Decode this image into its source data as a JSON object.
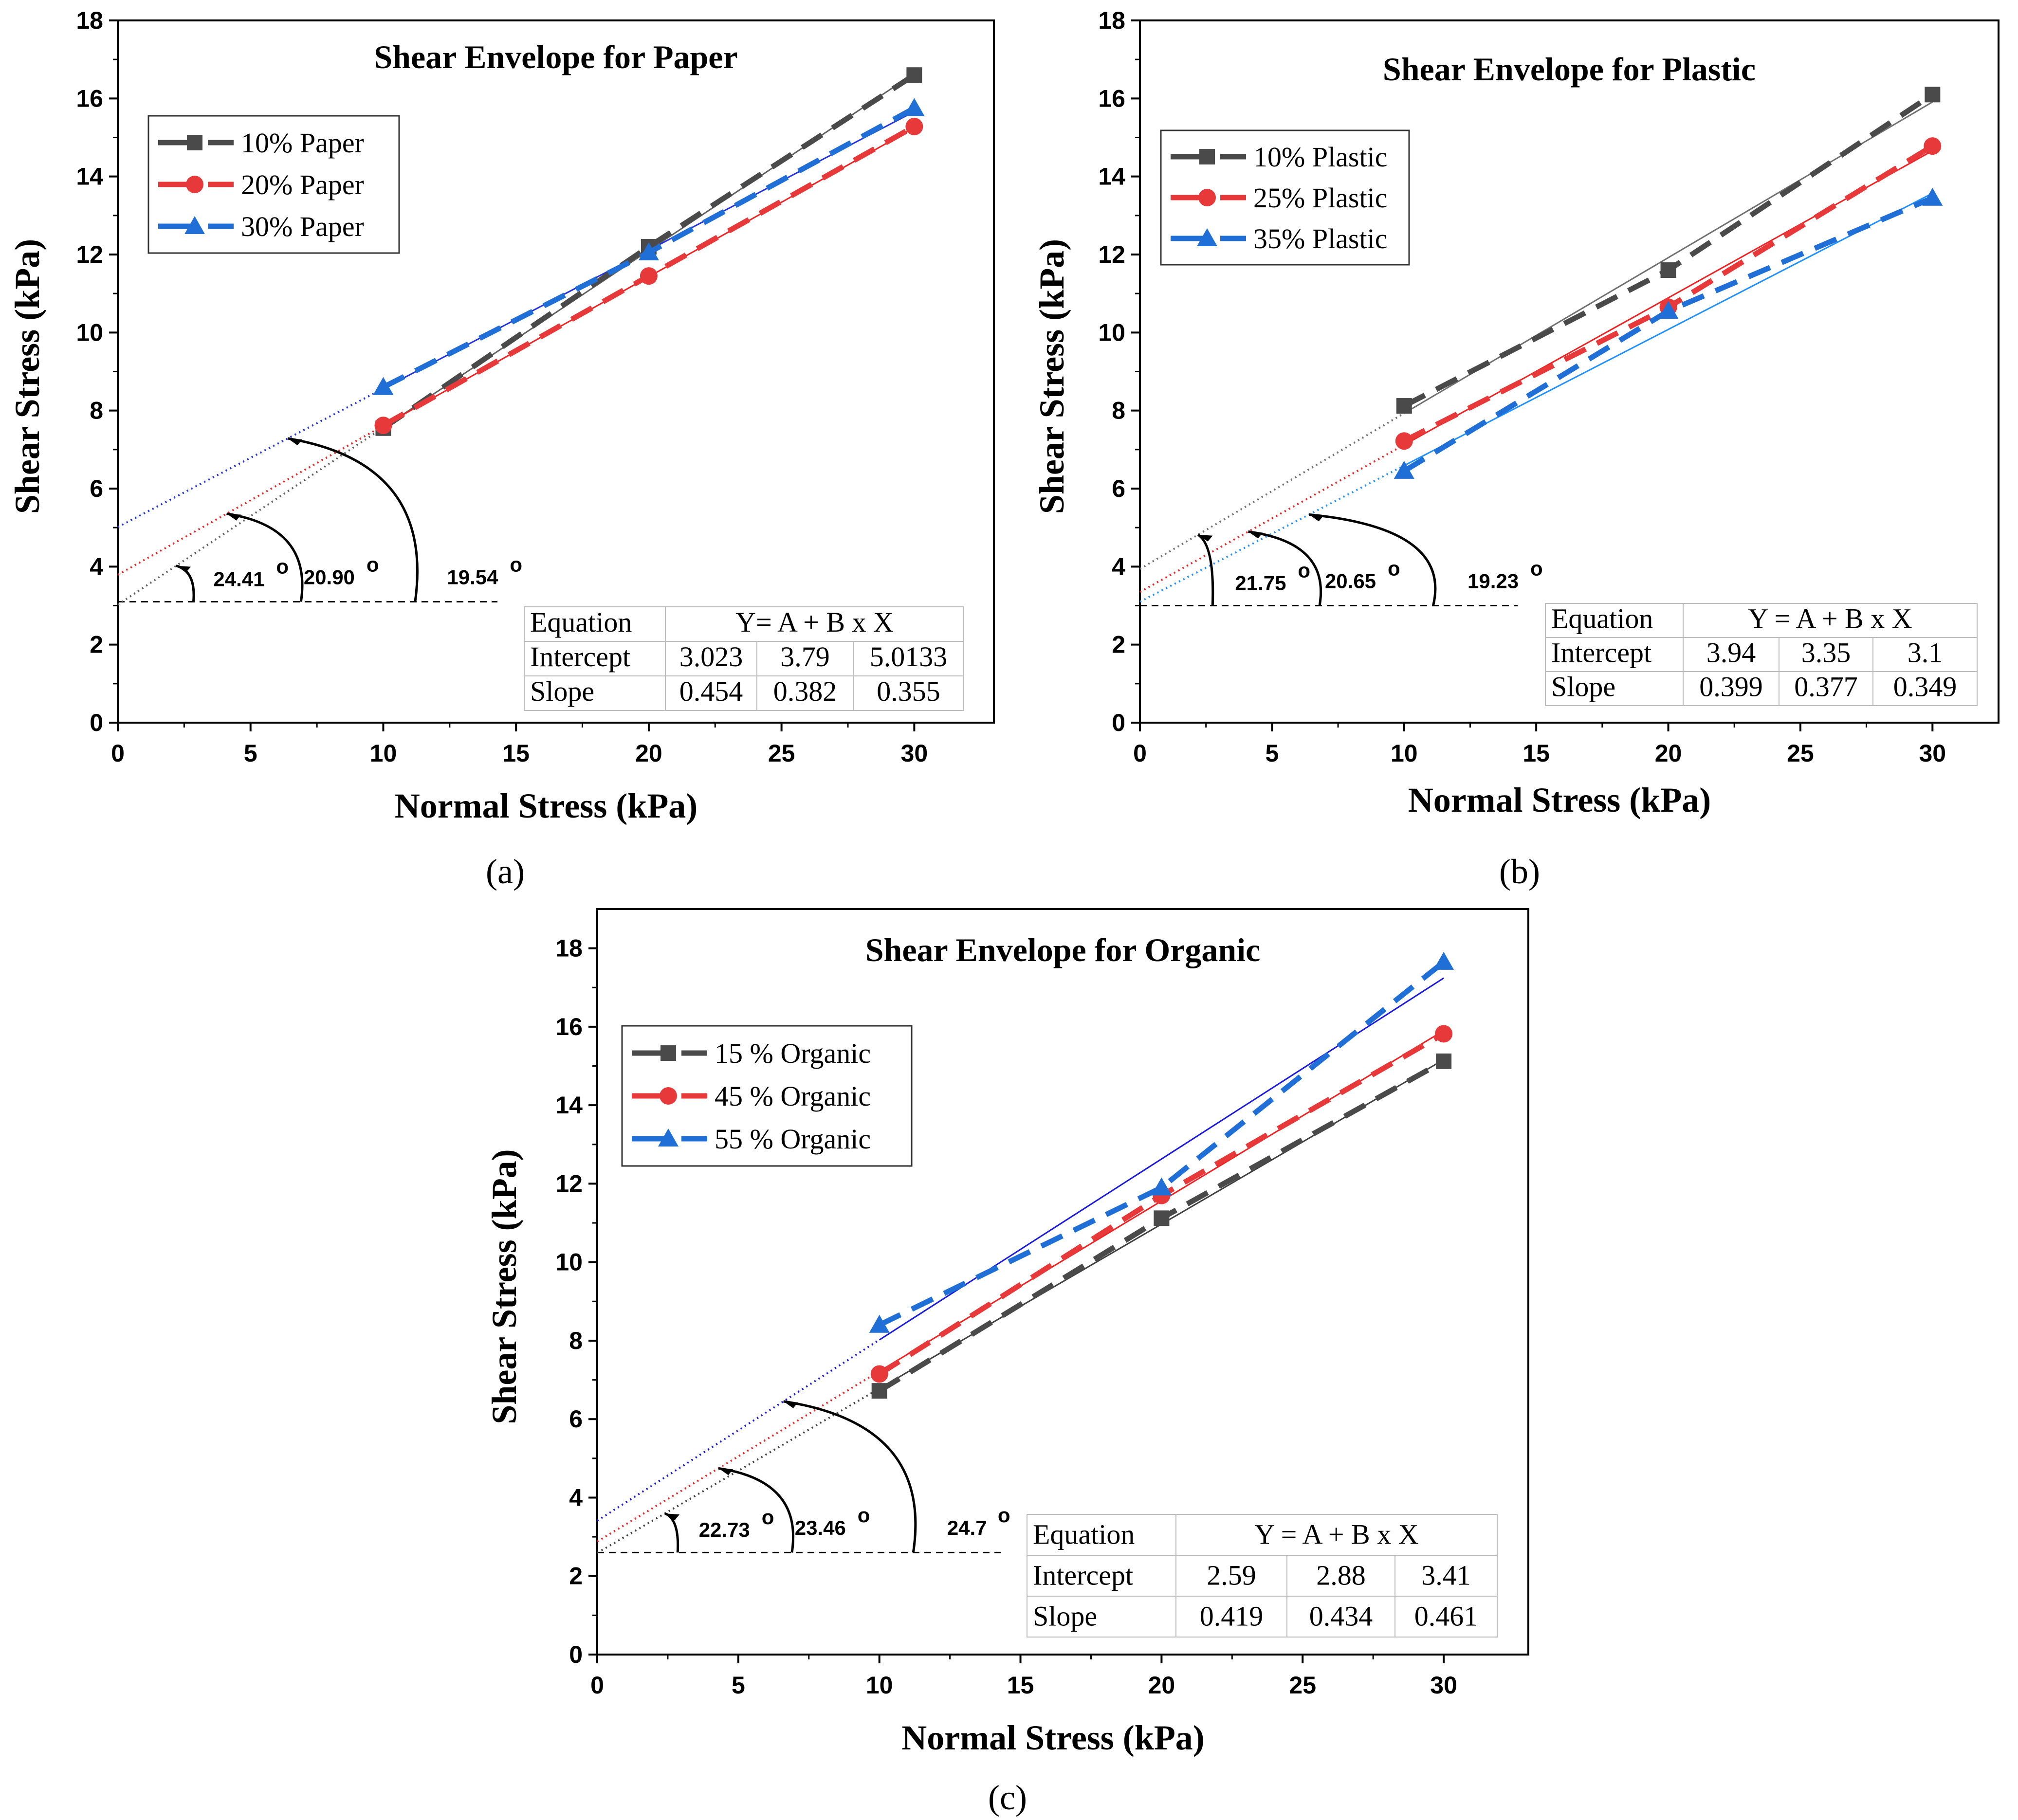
{
  "chart_data": [
    {
      "panel": "a",
      "caption": "(a)",
      "type": "line",
      "title": "Shear Envelope for Paper",
      "xlabel": "Normal Stress (kPa)",
      "ylabel": "Shear Stress (kPa)",
      "xlim": [
        0,
        33
      ],
      "ylim": [
        0,
        18
      ],
      "xticks": [
        0,
        5,
        10,
        15,
        20,
        25,
        30
      ],
      "yticks": [
        0,
        2,
        4,
        6,
        8,
        10,
        12,
        14,
        16,
        18
      ],
      "x": [
        10,
        20,
        30
      ],
      "series": [
        {
          "name": "10% Paper",
          "color": "#4a4a4a",
          "fit_color": "#606060",
          "marker": "square",
          "values": [
            7.55,
            12.2,
            16.6
          ],
          "intercept": 3.023,
          "slope": 0.454
        },
        {
          "name": "20% Paper",
          "color": "#e8393a",
          "fit_color": "#ee2222",
          "marker": "circle",
          "values": [
            7.62,
            11.45,
            15.28
          ],
          "intercept": 3.79,
          "slope": 0.382
        },
        {
          "name": "30% Paper",
          "color": "#1f6fd6",
          "fit_color": "#2233dd",
          "marker": "triangle",
          "values": [
            8.6,
            12.05,
            15.75
          ],
          "intercept": 5.0133,
          "slope": 0.355
        }
      ],
      "reference_line_y": 3.1,
      "angle_labels": [
        "24.41",
        "20.90",
        "19.54"
      ],
      "degree_symbol": "o",
      "table": {
        "header": [
          "Equation",
          "Y= A + B x X"
        ],
        "rows": [
          [
            "Intercept",
            "3.023",
            "3.79",
            "5.0133"
          ],
          [
            "Slope",
            "0.454",
            "0.382",
            "0.355"
          ]
        ]
      }
    },
    {
      "panel": "b",
      "caption": "(b)",
      "type": "line",
      "title": "Shear Envelope for Plastic",
      "xlabel": "Normal Stress (kPa)",
      "ylabel": "Shear Stress (kPa)",
      "xlim": [
        0,
        32.5
      ],
      "ylim": [
        0,
        18
      ],
      "xticks": [
        0,
        5,
        10,
        15,
        20,
        25,
        30
      ],
      "yticks": [
        0,
        2,
        4,
        6,
        8,
        10,
        12,
        14,
        16,
        18
      ],
      "x": [
        10,
        20,
        30
      ],
      "series": [
        {
          "name": "10% Plastic",
          "color": "#4a4a4a",
          "fit_color": "#707070",
          "marker": "square",
          "values": [
            8.12,
            11.6,
            16.1
          ],
          "intercept": 3.94,
          "slope": 0.399
        },
        {
          "name": "25% Plastic",
          "color": "#e8393a",
          "fit_color": "#ee2222",
          "marker": "circle",
          "values": [
            7.22,
            10.65,
            14.78
          ],
          "intercept": 3.35,
          "slope": 0.377
        },
        {
          "name": "35% Plastic",
          "color": "#1f6fd6",
          "fit_color": "#1e90ff",
          "marker": "triangle",
          "values": [
            6.45,
            10.55,
            13.45
          ],
          "intercept": 3.1,
          "slope": 0.349
        }
      ],
      "reference_line_y": 3.0,
      "angle_labels": [
        "21.75",
        "20.65",
        "19.23"
      ],
      "degree_symbol": "o",
      "table": {
        "header": [
          "Equation",
          "Y = A + B x X"
        ],
        "rows": [
          [
            "Intercept",
            "3.94",
            "3.35",
            "3.1"
          ],
          [
            "Slope",
            "0.399",
            "0.377",
            "0.349"
          ]
        ]
      }
    },
    {
      "panel": "c",
      "caption": "(c)",
      "type": "line",
      "title": "Shear Envelope for Organic",
      "xlabel": "Normal Stress (kPa)",
      "ylabel": "Shear Stress (kPa)",
      "xlim": [
        0,
        33
      ],
      "ylim": [
        0,
        19
      ],
      "xticks": [
        0,
        5,
        10,
        15,
        20,
        25,
        30
      ],
      "yticks": [
        0,
        2,
        4,
        6,
        8,
        10,
        12,
        14,
        16,
        18
      ],
      "x": [
        10,
        20,
        30
      ],
      "series": [
        {
          "name": "15 % Organic",
          "color": "#4a4a4a",
          "fit_color": "#404040",
          "marker": "square",
          "values": [
            6.72,
            11.12,
            15.12
          ],
          "intercept": 2.59,
          "slope": 0.419
        },
        {
          "name": "45 % Organic",
          "color": "#e8393a",
          "fit_color": "#ee2222",
          "marker": "circle",
          "values": [
            7.15,
            11.7,
            15.82
          ],
          "intercept": 2.88,
          "slope": 0.434
        },
        {
          "name": "55 % Organic",
          "color": "#1f6fd6",
          "fit_color": "#1a1add",
          "marker": "triangle",
          "values": [
            8.4,
            11.9,
            17.65
          ],
          "intercept": 3.41,
          "slope": 0.461
        }
      ],
      "reference_line_y": 2.6,
      "angle_labels": [
        "22.73",
        "23.46",
        "24.7"
      ],
      "degree_symbol": "o",
      "table": {
        "header": [
          "Equation",
          "Y = A + B x X"
        ],
        "rows": [
          [
            "Intercept",
            "2.59",
            "2.88",
            "3.41"
          ],
          [
            "Slope",
            "0.419",
            "0.434",
            "0.461"
          ]
        ]
      }
    }
  ]
}
